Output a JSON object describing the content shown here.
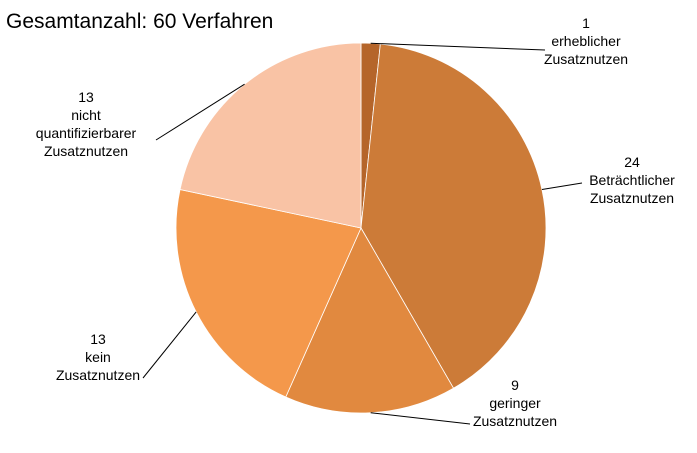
{
  "chart_data": {
    "type": "pie",
    "title": "Gesamtanzahl: 60 Verfahren",
    "slices": [
      {
        "value": 1,
        "label_lines": [
          "1",
          "erheblicher",
          "Zusatznutzen"
        ],
        "color": "#B5652A"
      },
      {
        "value": 24,
        "label_lines": [
          "24",
          "Beträchtlicher",
          "Zusatznutzen"
        ],
        "color": "#CC7B38"
      },
      {
        "value": 9,
        "label_lines": [
          "9",
          "geringer",
          "Zusatznutzen"
        ],
        "color": "#E1893F"
      },
      {
        "value": 13,
        "label_lines": [
          "13",
          "kein",
          "Zusatznutzen"
        ],
        "color": "#F4984B"
      },
      {
        "value": 13,
        "label_lines": [
          "13",
          "nicht",
          "quantifizierbarer",
          "Zusatznutzen"
        ],
        "color": "#F9C3A5"
      }
    ]
  }
}
